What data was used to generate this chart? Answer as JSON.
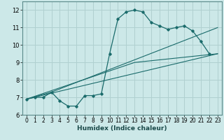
{
  "xlabel": "Humidex (Indice chaleur)",
  "xlim": [
    -0.5,
    23.5
  ],
  "ylim": [
    6,
    12.5
  ],
  "yticks": [
    6,
    7,
    8,
    9,
    10,
    11,
    12
  ],
  "xticks": [
    0,
    1,
    2,
    3,
    4,
    5,
    6,
    7,
    8,
    9,
    10,
    11,
    12,
    13,
    14,
    15,
    16,
    17,
    18,
    19,
    20,
    21,
    22,
    23
  ],
  "bg_color": "#cce8e8",
  "grid_color": "#b0d0d0",
  "line_color": "#1a6b6b",
  "curve_main_x": [
    0,
    1,
    2,
    3,
    4,
    5,
    6,
    7,
    8,
    9,
    10,
    11,
    12,
    13,
    14,
    15,
    16,
    17,
    18,
    19,
    20,
    21,
    22
  ],
  "curve_main_y": [
    6.9,
    7.0,
    7.0,
    7.3,
    6.8,
    6.5,
    6.5,
    7.1,
    7.1,
    7.2,
    9.5,
    11.5,
    11.9,
    12.0,
    11.9,
    11.3,
    11.1,
    10.9,
    11.0,
    11.1,
    10.8,
    10.2,
    9.5
  ],
  "line1_x": [
    0,
    23
  ],
  "line1_y": [
    6.9,
    9.5
  ],
  "line2_x": [
    0,
    3,
    23
  ],
  "line2_y": [
    6.9,
    7.3,
    11.0
  ],
  "line3_x": [
    0,
    13,
    23
  ],
  "line3_y": [
    6.9,
    9.0,
    9.5
  ]
}
